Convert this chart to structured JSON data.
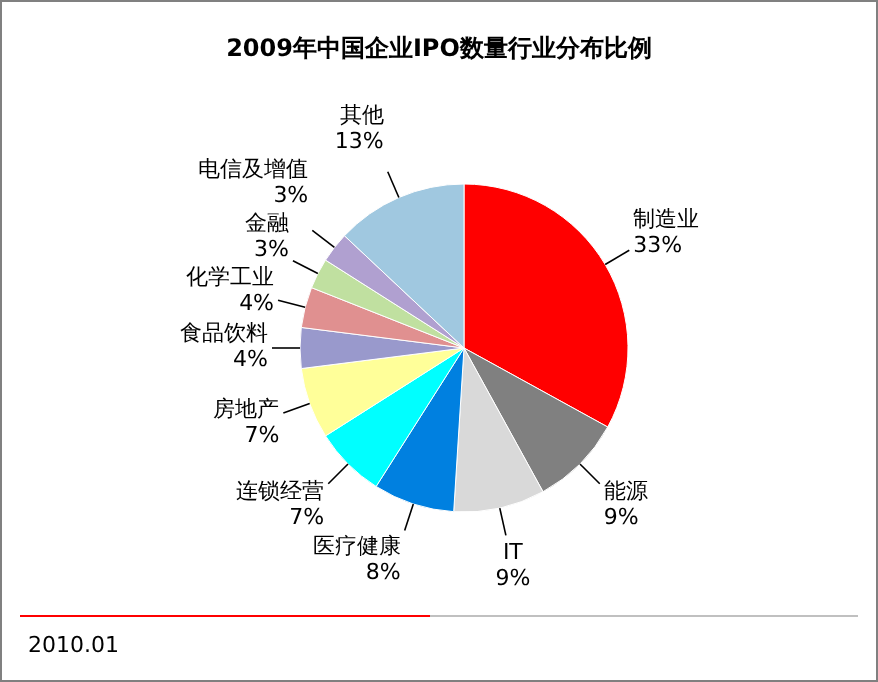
{
  "chart_data": {
    "type": "pie",
    "title": "2009年中国企业IPO数量行业分布比例",
    "categories": [
      "制造业",
      "能源",
      "IT",
      "医疗健康",
      "连锁经营",
      "房地产",
      "食品饮料",
      "化学工业",
      "金融",
      "电信及增值",
      "其他"
    ],
    "values": [
      33,
      9,
      9,
      8,
      7,
      7,
      4,
      4,
      3,
      3,
      13
    ],
    "value_labels": [
      "33%",
      "9%",
      "9%",
      "8%",
      "7%",
      "7%",
      "4%",
      "4%",
      "3%",
      "3%",
      "13%"
    ],
    "colors": [
      "#ff0000",
      "#808080",
      "#d9d9d9",
      "#0080e0",
      "#00ffff",
      "#ffff99",
      "#9999cc",
      "#e09090",
      "#c0e0a0",
      "#b0a0d0",
      "#a0c8e0"
    ],
    "annotations": [
      "2010.01"
    ]
  }
}
